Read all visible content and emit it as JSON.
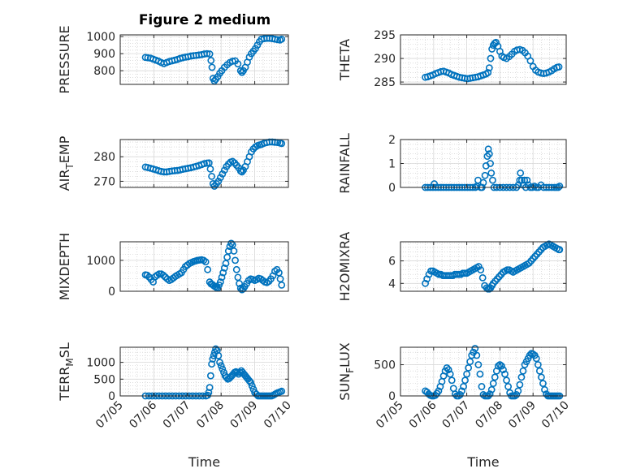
{
  "figure_title": "Figure 2 medium",
  "colors": {
    "marker": "#0072BD",
    "axis": "#262626",
    "grid": "#c8c8c8"
  },
  "x_axis": {
    "label": "Time",
    "range": [
      "07/05",
      "07/10"
    ],
    "tick_labels": [
      "07/05",
      "07/06",
      "07/07",
      "07/08",
      "07/09",
      "07/10"
    ]
  },
  "chart_data": [
    {
      "type": "scatter",
      "ylabel": "PRESSURE",
      "ylim": [
        720,
        1010
      ],
      "yticks": [
        800,
        900,
        1000
      ],
      "grid": true,
      "x_days": [
        0.75,
        0.82,
        0.9,
        0.98,
        1.06,
        1.14,
        1.22,
        1.3,
        1.38,
        1.46,
        1.54,
        1.62,
        1.7,
        1.78,
        1.86,
        1.94,
        2.02,
        2.1,
        2.18,
        2.26,
        2.34,
        2.42,
        2.5,
        2.58,
        2.66,
        2.7,
        2.73,
        2.76,
        2.8,
        2.84,
        2.9,
        2.96,
        3.02,
        3.1,
        3.18,
        3.26,
        3.34,
        3.42,
        3.5,
        3.58,
        3.62,
        3.66,
        3.72,
        3.78,
        3.84,
        3.9,
        3.96,
        4.02,
        4.08,
        4.14,
        4.2,
        4.28,
        4.36,
        4.44,
        4.52,
        4.6,
        4.68,
        4.75,
        4.8
      ],
      "y": [
        878,
        876,
        874,
        868,
        862,
        856,
        848,
        842,
        848,
        854,
        858,
        862,
        866,
        872,
        876,
        880,
        882,
        886,
        888,
        890,
        892,
        894,
        898,
        900,
        898,
        860,
        820,
        755,
        740,
        750,
        765,
        785,
        800,
        820,
        835,
        848,
        856,
        858,
        840,
        800,
        790,
        800,
        820,
        850,
        880,
        900,
        915,
        930,
        950,
        970,
        985,
        988,
        990,
        990,
        988,
        985,
        982,
        980,
        985
      ]
    },
    {
      "type": "scatter",
      "ylabel": "THETA",
      "ylim": [
        284.5,
        295
      ],
      "yticks": [
        285,
        290,
        295
      ],
      "grid": true,
      "x_days": [
        0.75,
        0.82,
        0.9,
        0.98,
        1.06,
        1.14,
        1.22,
        1.3,
        1.38,
        1.46,
        1.54,
        1.62,
        1.7,
        1.78,
        1.86,
        1.94,
        2.02,
        2.1,
        2.18,
        2.26,
        2.34,
        2.42,
        2.5,
        2.58,
        2.64,
        2.68,
        2.72,
        2.76,
        2.8,
        2.84,
        2.88,
        2.94,
        3.0,
        3.06,
        3.12,
        3.2,
        3.28,
        3.36,
        3.44,
        3.52,
        3.6,
        3.68,
        3.76,
        3.84,
        3.92,
        4.0,
        4.08,
        4.16,
        4.24,
        4.32,
        4.4,
        4.48,
        4.56,
        4.64,
        4.72,
        4.78
      ],
      "y": [
        286,
        286.1,
        286.3,
        286.5,
        286.8,
        287,
        287.2,
        287.3,
        287.1,
        286.9,
        286.6,
        286.4,
        286.2,
        286,
        285.9,
        285.8,
        285.7,
        285.8,
        285.9,
        286,
        286.1,
        286.3,
        286.5,
        286.7,
        287,
        288,
        290,
        292,
        292.8,
        293.2,
        293.4,
        292.6,
        291.5,
        290.5,
        290.2,
        290,
        290.4,
        290.9,
        291.5,
        291.8,
        291.9,
        291.7,
        291.2,
        290.5,
        289.5,
        288.3,
        287.5,
        287.1,
        286.9,
        286.8,
        286.9,
        287.1,
        287.4,
        287.8,
        288.1,
        288.2
      ]
    },
    {
      "type": "scatter",
      "ylabel": "AIR_TEMP",
      "ylim": [
        267.5,
        287
      ],
      "yticks": [
        270,
        280
      ],
      "grid": true,
      "x_days": [
        0.75,
        0.82,
        0.9,
        0.98,
        1.06,
        1.14,
        1.22,
        1.3,
        1.38,
        1.46,
        1.54,
        1.62,
        1.7,
        1.78,
        1.86,
        1.94,
        2.02,
        2.1,
        2.18,
        2.26,
        2.34,
        2.42,
        2.5,
        2.58,
        2.64,
        2.68,
        2.72,
        2.76,
        2.8,
        2.86,
        2.92,
        2.98,
        3.04,
        3.1,
        3.16,
        3.22,
        3.28,
        3.34,
        3.4,
        3.46,
        3.52,
        3.58,
        3.62,
        3.66,
        3.72,
        3.78,
        3.84,
        3.9,
        3.96,
        4.02,
        4.08,
        4.14,
        4.2,
        4.28,
        4.36,
        4.44,
        4.52,
        4.6,
        4.68,
        4.75,
        4.8
      ],
      "y": [
        275.8,
        275.6,
        275.3,
        275,
        274.7,
        274.3,
        274,
        273.8,
        273.8,
        274,
        274.2,
        274.3,
        274.4,
        274.6,
        274.9,
        275.1,
        275.3,
        275.5,
        275.8,
        276.1,
        276.4,
        276.8,
        277.2,
        277.4,
        277.5,
        275,
        272,
        269,
        268,
        269,
        270,
        271.5,
        273,
        274.5,
        276,
        277,
        277.8,
        278.1,
        277.5,
        276.5,
        275.5,
        274.2,
        273.8,
        274.5,
        276,
        278,
        280,
        282,
        283.2,
        284,
        284.5,
        284.8,
        285,
        285.5,
        285.8,
        286,
        286,
        285.9,
        285.8,
        285.6,
        285.4
      ]
    },
    {
      "type": "scatter",
      "ylabel": "RAINFALL",
      "ylim": [
        0,
        2
      ],
      "yticks": [
        0,
        1,
        2
      ],
      "grid": true,
      "x_days": [
        0.75,
        0.82,
        0.9,
        0.98,
        1.02,
        1.06,
        1.14,
        1.22,
        1.3,
        1.38,
        1.46,
        1.54,
        1.62,
        1.7,
        1.78,
        1.86,
        1.94,
        2.02,
        2.1,
        2.18,
        2.26,
        2.3,
        2.34,
        2.42,
        2.46,
        2.5,
        2.55,
        2.58,
        2.62,
        2.65,
        2.68,
        2.71,
        2.74,
        2.78,
        2.82,
        2.9,
        3.0,
        3.1,
        3.2,
        3.3,
        3.4,
        3.5,
        3.56,
        3.6,
        3.62,
        3.66,
        3.7,
        3.74,
        3.78,
        3.82,
        3.86,
        3.92,
        3.98,
        4.04,
        4.1,
        4.16,
        4.24,
        4.32,
        4.4,
        4.48,
        4.56,
        4.64,
        4.7,
        4.76,
        4.8
      ],
      "y": [
        0,
        0,
        0,
        0,
        0.15,
        0,
        0,
        0,
        0,
        0,
        0,
        0,
        0,
        0,
        0,
        0,
        0,
        0,
        0,
        0,
        0,
        0.05,
        0.3,
        0,
        0,
        0.2,
        0.5,
        0.9,
        1.3,
        1.6,
        1.4,
        1.0,
        0.6,
        0.3,
        0,
        0,
        0,
        0,
        0,
        0,
        0,
        0,
        0.1,
        0.3,
        0.6,
        0.3,
        0.1,
        0.3,
        0,
        0.3,
        0.1,
        0,
        0,
        0.05,
        0,
        0,
        0.1,
        0,
        0,
        0,
        0,
        0,
        0,
        0,
        0.05
      ]
    },
    {
      "type": "scatter",
      "ylabel": "MIXDEPTH",
      "ylim": [
        0,
        1600
      ],
      "yticks": [
        0,
        1000
      ],
      "grid": true,
      "x_days": [
        0.75,
        0.8,
        0.86,
        0.92,
        0.98,
        1.04,
        1.1,
        1.16,
        1.22,
        1.28,
        1.34,
        1.4,
        1.46,
        1.52,
        1.58,
        1.64,
        1.7,
        1.76,
        1.82,
        1.88,
        1.94,
        2.0,
        2.06,
        2.12,
        2.18,
        2.24,
        2.3,
        2.36,
        2.42,
        2.48,
        2.54,
        2.6,
        2.66,
        2.7,
        2.74,
        2.78,
        2.82,
        2.86,
        2.9,
        2.94,
        2.98,
        3.02,
        3.06,
        3.1,
        3.14,
        3.18,
        3.22,
        3.26,
        3.3,
        3.34,
        3.38,
        3.42,
        3.46,
        3.5,
        3.54,
        3.58,
        3.62,
        3.66,
        3.7,
        3.76,
        3.82,
        3.88,
        3.94,
        4.0,
        4.06,
        4.12,
        4.18,
        4.24,
        4.3,
        4.36,
        4.42,
        4.48,
        4.54,
        4.6,
        4.66,
        4.72,
        4.76,
        4.8
      ],
      "y": [
        530,
        520,
        460,
        380,
        300,
        470,
        520,
        560,
        560,
        520,
        460,
        400,
        350,
        380,
        430,
        480,
        520,
        560,
        600,
        700,
        800,
        850,
        900,
        930,
        960,
        980,
        1000,
        1010,
        1020,
        1000,
        950,
        700,
        300,
        240,
        220,
        180,
        150,
        120,
        100,
        200,
        300,
        450,
        600,
        750,
        900,
        1100,
        1300,
        1450,
        1550,
        1500,
        1300,
        1000,
        700,
        450,
        250,
        100,
        50,
        80,
        150,
        250,
        350,
        400,
        380,
        350,
        380,
        420,
        400,
        350,
        300,
        280,
        320,
        400,
        500,
        650,
        700,
        600,
        400,
        200
      ]
    },
    {
      "type": "scatter",
      "ylabel": "H2OMIXRA",
      "ylim": [
        3.3,
        7.7
      ],
      "yticks": [
        4,
        6
      ],
      "grid": true,
      "x_days": [
        0.75,
        0.8,
        0.86,
        0.92,
        0.98,
        1.04,
        1.1,
        1.16,
        1.22,
        1.28,
        1.34,
        1.4,
        1.46,
        1.52,
        1.58,
        1.64,
        1.7,
        1.76,
        1.82,
        1.88,
        1.94,
        2.0,
        2.06,
        2.12,
        2.18,
        2.24,
        2.3,
        2.36,
        2.42,
        2.48,
        2.54,
        2.6,
        2.64,
        2.68,
        2.72,
        2.76,
        2.8,
        2.86,
        2.92,
        2.98,
        3.04,
        3.1,
        3.16,
        3.22,
        3.28,
        3.34,
        3.4,
        3.46,
        3.52,
        3.58,
        3.64,
        3.7,
        3.76,
        3.82,
        3.88,
        3.94,
        4.0,
        4.06,
        4.12,
        4.18,
        4.24,
        4.3,
        4.36,
        4.42,
        4.48,
        4.54,
        4.6,
        4.66,
        4.72,
        4.78,
        4.8
      ],
      "y": [
        4.0,
        4.4,
        4.8,
        5.1,
        5.1,
        5.0,
        4.9,
        4.8,
        4.8,
        4.7,
        4.7,
        4.7,
        4.7,
        4.7,
        4.7,
        4.8,
        4.8,
        4.8,
        4.8,
        4.9,
        4.9,
        4.9,
        5.0,
        5.1,
        5.2,
        5.3,
        5.4,
        5.5,
        5.2,
        4.5,
        3.8,
        3.6,
        3.5,
        3.5,
        3.6,
        3.8,
        4.0,
        4.2,
        4.4,
        4.6,
        4.8,
        5.0,
        5.1,
        5.2,
        5.2,
        5.1,
        5.0,
        5.1,
        5.2,
        5.3,
        5.4,
        5.5,
        5.6,
        5.7,
        5.8,
        6.0,
        6.2,
        6.4,
        6.6,
        6.8,
        7.0,
        7.2,
        7.3,
        7.4,
        7.5,
        7.4,
        7.3,
        7.2,
        7.1,
        7.0,
        7.0
      ]
    },
    {
      "type": "scatter",
      "ylabel": "TERR_MSL",
      "ylim": [
        0,
        1450
      ],
      "yticks": [
        0,
        500,
        1000
      ],
      "grid": true,
      "x_days": [
        0.75,
        0.85,
        0.95,
        1.05,
        1.15,
        1.25,
        1.35,
        1.45,
        1.55,
        1.65,
        1.75,
        1.85,
        1.95,
        2.05,
        2.15,
        2.25,
        2.35,
        2.45,
        2.55,
        2.6,
        2.63,
        2.66,
        2.69,
        2.72,
        2.75,
        2.78,
        2.81,
        2.84,
        2.88,
        2.92,
        2.96,
        3.0,
        3.04,
        3.08,
        3.12,
        3.16,
        3.2,
        3.24,
        3.28,
        3.32,
        3.36,
        3.4,
        3.44,
        3.48,
        3.52,
        3.56,
        3.6,
        3.64,
        3.68,
        3.72,
        3.76,
        3.8,
        3.84,
        3.88,
        3.92,
        3.96,
        4.0,
        4.05,
        4.1,
        4.15,
        4.2,
        4.25,
        4.3,
        4.35,
        4.4,
        4.45,
        4.5,
        4.55,
        4.6,
        4.65,
        4.7,
        4.75,
        4.8
      ],
      "y": [
        0,
        0,
        0,
        0,
        0,
        0,
        0,
        0,
        0,
        0,
        0,
        0,
        0,
        0,
        0,
        0,
        0,
        0,
        0,
        20,
        100,
        250,
        600,
        950,
        1100,
        1200,
        1300,
        1400,
        1350,
        1200,
        1000,
        900,
        800,
        700,
        600,
        550,
        500,
        520,
        560,
        600,
        650,
        700,
        720,
        700,
        650,
        700,
        750,
        700,
        650,
        600,
        550,
        500,
        450,
        400,
        300,
        200,
        100,
        50,
        0,
        0,
        0,
        0,
        0,
        0,
        0,
        0,
        0,
        20,
        50,
        80,
        100,
        120,
        140
      ]
    },
    {
      "type": "scatter",
      "ylabel": "SUN_FLUX",
      "ylim": [
        0,
        780
      ],
      "yticks": [
        0,
        500
      ],
      "grid": true,
      "x_days": [
        0.75,
        0.8,
        0.85,
        0.9,
        0.95,
        1.0,
        1.05,
        1.1,
        1.15,
        1.2,
        1.25,
        1.3,
        1.35,
        1.4,
        1.45,
        1.5,
        1.55,
        1.6,
        1.65,
        1.7,
        1.75,
        1.8,
        1.85,
        1.9,
        1.95,
        2.0,
        2.05,
        2.1,
        2.15,
        2.2,
        2.25,
        2.3,
        2.35,
        2.4,
        2.45,
        2.5,
        2.55,
        2.6,
        2.65,
        2.7,
        2.75,
        2.8,
        2.85,
        2.9,
        2.95,
        3.0,
        3.05,
        3.1,
        3.15,
        3.2,
        3.25,
        3.3,
        3.35,
        3.4,
        3.45,
        3.5,
        3.55,
        3.6,
        3.65,
        3.7,
        3.75,
        3.8,
        3.85,
        3.9,
        3.95,
        4.0,
        4.05,
        4.1,
        4.15,
        4.2,
        4.25,
        4.3,
        4.35,
        4.4,
        4.45,
        4.5,
        4.55,
        4.6,
        4.65,
        4.7,
        4.75,
        4.8
      ],
      "y": [
        80,
        60,
        30,
        10,
        0,
        0,
        10,
        40,
        80,
        150,
        230,
        320,
        400,
        450,
        420,
        350,
        250,
        120,
        30,
        0,
        0,
        20,
        80,
        150,
        250,
        350,
        450,
        550,
        650,
        700,
        760,
        650,
        500,
        350,
        150,
        20,
        0,
        0,
        0,
        30,
        100,
        200,
        300,
        400,
        480,
        500,
        480,
        420,
        350,
        250,
        150,
        50,
        0,
        0,
        0,
        20,
        80,
        180,
        300,
        400,
        500,
        550,
        600,
        650,
        680,
        670,
        650,
        600,
        500,
        400,
        300,
        200,
        100,
        30,
        0,
        0,
        0,
        0,
        0,
        0,
        0,
        0
      ]
    }
  ]
}
